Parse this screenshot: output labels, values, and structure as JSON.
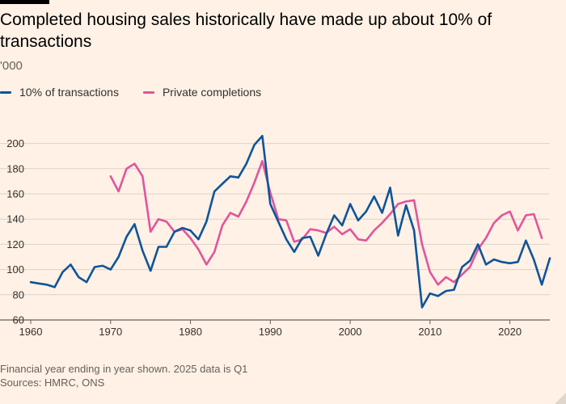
{
  "title": "Completed housing sales historically have made up about 10% of transactions",
  "subtitle": "'000",
  "note": "Financial year ending in year shown. 2025 data is Q1",
  "source": "Sources: HMRC, ONS",
  "colors": {
    "transactions": "#0f5499",
    "completions": "#e0559d",
    "grid": "#dcd3cb",
    "text": "#33302e"
  },
  "chart_data": {
    "type": "line",
    "title": "Completed housing sales historically have made up about 10% of transactions",
    "ylabel": "'000",
    "xlim": [
      1960,
      2025
    ],
    "ylim": [
      60,
      210
    ],
    "yticks": [
      60,
      80,
      100,
      120,
      140,
      160,
      180,
      200
    ],
    "xticks": [
      1960,
      1970,
      1980,
      1990,
      2000,
      2010,
      2020
    ],
    "legend": "top-left",
    "grid": true,
    "series": [
      {
        "name": "10% of transactions",
        "color": "#0f5499",
        "x": [
          1960,
          1961,
          1962,
          1963,
          1964,
          1965,
          1966,
          1967,
          1968,
          1969,
          1970,
          1971,
          1972,
          1973,
          1974,
          1975,
          1976,
          1977,
          1978,
          1979,
          1980,
          1981,
          1982,
          1983,
          1984,
          1985,
          1986,
          1987,
          1988,
          1989,
          1990,
          1991,
          1992,
          1993,
          1994,
          1995,
          1996,
          1997,
          1998,
          1999,
          2000,
          2001,
          2002,
          2003,
          2004,
          2005,
          2006,
          2007,
          2008,
          2009,
          2010,
          2011,
          2012,
          2013,
          2014,
          2015,
          2016,
          2017,
          2018,
          2019,
          2020,
          2021,
          2022,
          2023,
          2024,
          2025
        ],
        "values": [
          90,
          89,
          88,
          86,
          98,
          104,
          94,
          90,
          102,
          103,
          100,
          110,
          126,
          136,
          115,
          99,
          118,
          118,
          130,
          133,
          131,
          124,
          138,
          162,
          168,
          174,
          173,
          184,
          199,
          206,
          152,
          138,
          124,
          114,
          125,
          126,
          111,
          128,
          143,
          135,
          152,
          139,
          146,
          158,
          145,
          165,
          127,
          151,
          131,
          70,
          81,
          79,
          83,
          84,
          102,
          107,
          120,
          104,
          108,
          106,
          105,
          106,
          123,
          108,
          88,
          109
        ]
      },
      {
        "name": "Private completions",
        "color": "#e0559d",
        "x": [
          1970,
          1971,
          1972,
          1973,
          1974,
          1975,
          1976,
          1977,
          1978,
          1979,
          1980,
          1981,
          1982,
          1983,
          1984,
          1985,
          1986,
          1987,
          1988,
          1989,
          1990,
          1991,
          1992,
          1993,
          1994,
          1995,
          1996,
          1997,
          1998,
          1999,
          2000,
          2001,
          2002,
          2003,
          2004,
          2005,
          2006,
          2007,
          2008,
          2009,
          2010,
          2011,
          2012,
          2013,
          2014,
          2015,
          2016,
          2017,
          2018,
          2019,
          2020,
          2021,
          2022,
          2023,
          2024
        ],
        "values": [
          174,
          162,
          180,
          184,
          174,
          130,
          140,
          138,
          130,
          132,
          125,
          116,
          104,
          114,
          135,
          145,
          142,
          154,
          169,
          186,
          161,
          140,
          139,
          122,
          124,
          132,
          131,
          129,
          134,
          128,
          132,
          124,
          123,
          131,
          137,
          144,
          152,
          154,
          155,
          120,
          98,
          88,
          94,
          90,
          96,
          102,
          116,
          125,
          137,
          143,
          146,
          131,
          143,
          144,
          125
        ]
      }
    ]
  }
}
